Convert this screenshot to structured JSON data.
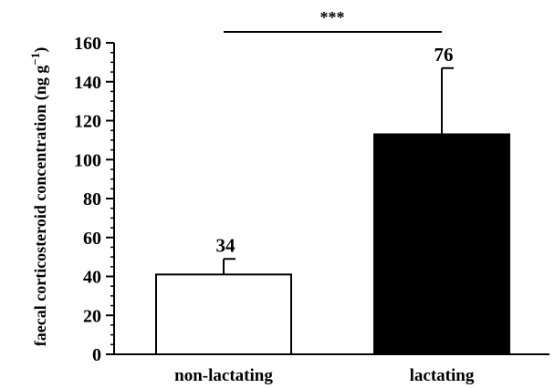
{
  "chart_data": {
    "type": "bar",
    "categories": [
      "non-lactating",
      "lactating"
    ],
    "values": [
      41,
      113
    ],
    "errors": [
      8,
      34
    ],
    "data_labels": [
      "34",
      "76"
    ],
    "bar_colors": [
      "#ffffff",
      "#000000"
    ],
    "ylabel": "faecal corticosteroid concentration (ng g",
    "ylabel_superscript": "−1",
    "ylabel_suffix": ")",
    "ylim": [
      0,
      160
    ],
    "yticks": [
      "0",
      "20",
      "40",
      "60",
      "80",
      "100",
      "120",
      "140",
      "160"
    ],
    "minor_tick_step": 5,
    "significance": "***",
    "grid": false
  }
}
